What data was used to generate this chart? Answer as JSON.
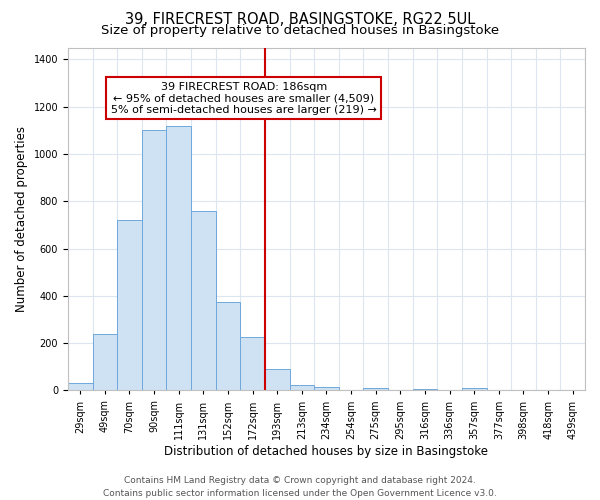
{
  "title": "39, FIRECREST ROAD, BASINGSTOKE, RG22 5UL",
  "subtitle": "Size of property relative to detached houses in Basingstoke",
  "xlabel": "Distribution of detached houses by size in Basingstoke",
  "ylabel": "Number of detached properties",
  "bin_labels": [
    "29sqm",
    "49sqm",
    "70sqm",
    "90sqm",
    "111sqm",
    "131sqm",
    "152sqm",
    "172sqm",
    "193sqm",
    "213sqm",
    "234sqm",
    "254sqm",
    "275sqm",
    "295sqm",
    "316sqm",
    "336sqm",
    "357sqm",
    "377sqm",
    "398sqm",
    "418sqm",
    "439sqm"
  ],
  "bar_values": [
    30,
    240,
    720,
    1100,
    1120,
    760,
    375,
    225,
    90,
    25,
    15,
    0,
    10,
    0,
    5,
    0,
    10,
    0,
    0,
    0,
    2
  ],
  "bar_color": "#cfe2f3",
  "bar_edge_color": "#6fa8dc",
  "grid_color": "#dce6f1",
  "vline_x_index": 8,
  "vline_color": "#cc0000",
  "annotation_line1": "39 FIRECREST ROAD: 186sqm",
  "annotation_line2": "← 95% of detached houses are smaller (4,509)",
  "annotation_line3": "5% of semi-detached houses are larger (219) →",
  "annotation_box_edgecolor": "#cc0000",
  "annotation_box_facecolor": "#ffffff",
  "ylim": [
    0,
    1450
  ],
  "yticks": [
    0,
    200,
    400,
    600,
    800,
    1000,
    1200,
    1400
  ],
  "n_bins": 21,
  "footer_line1": "Contains HM Land Registry data © Crown copyright and database right 2024.",
  "footer_line2": "Contains public sector information licensed under the Open Government Licence v3.0.",
  "title_fontsize": 10.5,
  "subtitle_fontsize": 9.5,
  "axis_label_fontsize": 8.5,
  "tick_fontsize": 7,
  "annotation_fontsize": 8,
  "footer_fontsize": 6.5
}
